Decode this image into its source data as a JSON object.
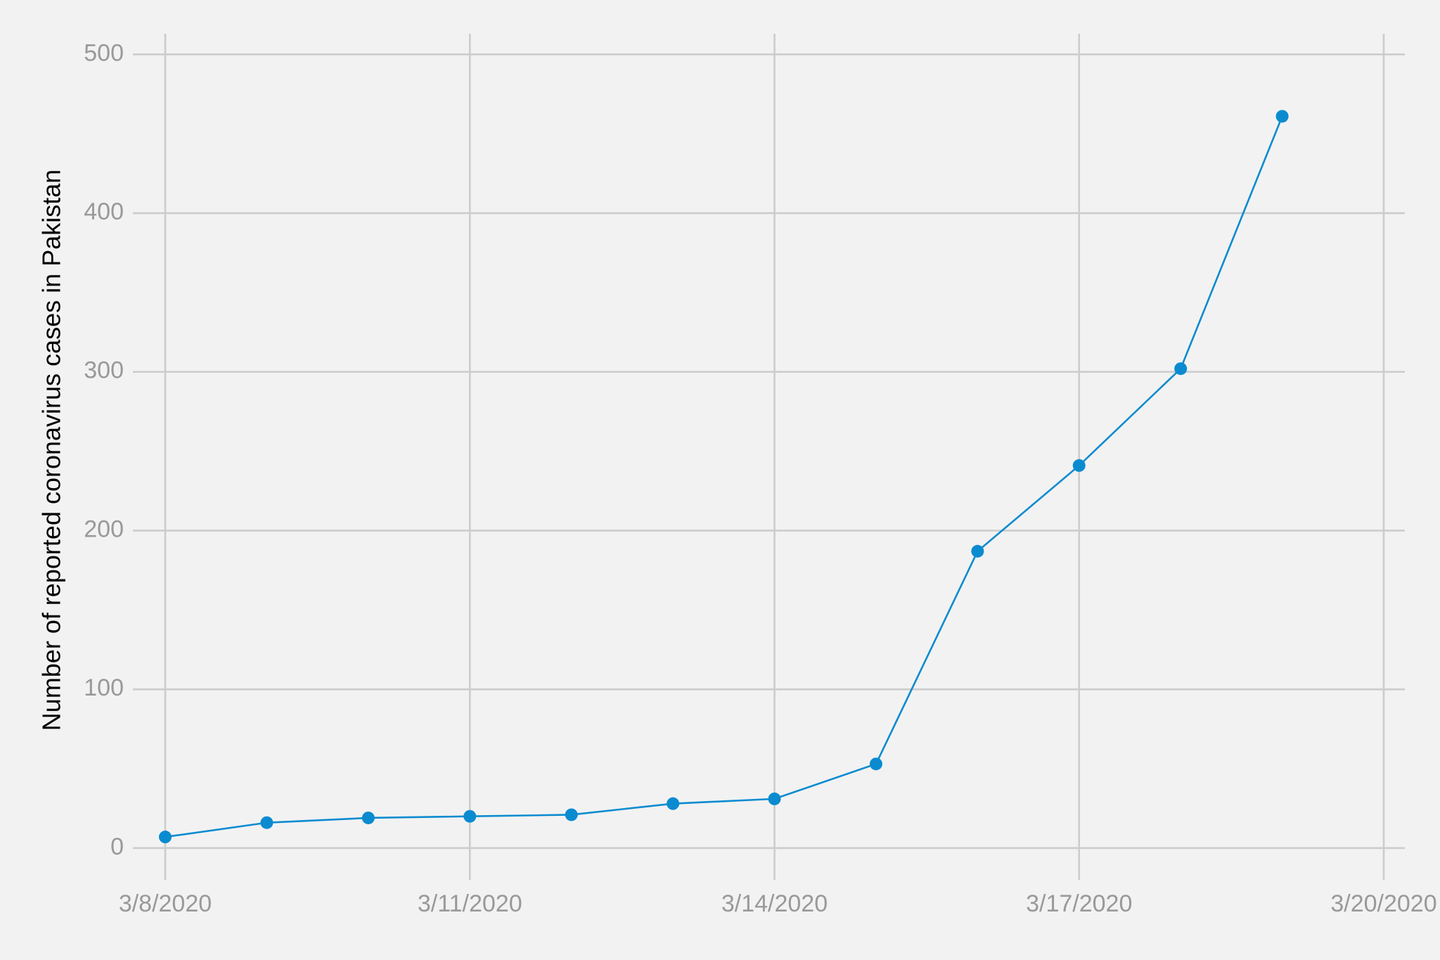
{
  "chart_data": {
    "type": "line",
    "y_label": "Number of reported coronavirus cases in Pakistan",
    "x": [
      "3/8/2020",
      "3/9/2020",
      "3/10/2020",
      "3/11/2020",
      "3/12/2020",
      "3/13/2020",
      "3/14/2020",
      "3/15/2020",
      "3/16/2020",
      "3/17/2020",
      "3/18/2020",
      "3/19/2020"
    ],
    "series": [
      {
        "color": "#0a8bd0",
        "values": [
          7,
          16,
          19,
          20,
          21,
          28,
          31,
          53,
          187,
          241,
          302,
          461
        ]
      }
    ],
    "xlim": [
      "3/8/2020",
      "3/20/2020"
    ],
    "xticks": [
      "3/8/2020",
      "3/11/2020",
      "3/14/2020",
      "3/17/2020",
      "3/20/2020"
    ],
    "ylim": [
      -20,
      513
    ],
    "yticks": [
      0,
      100,
      200,
      300,
      400,
      500
    ],
    "grid": true
  }
}
